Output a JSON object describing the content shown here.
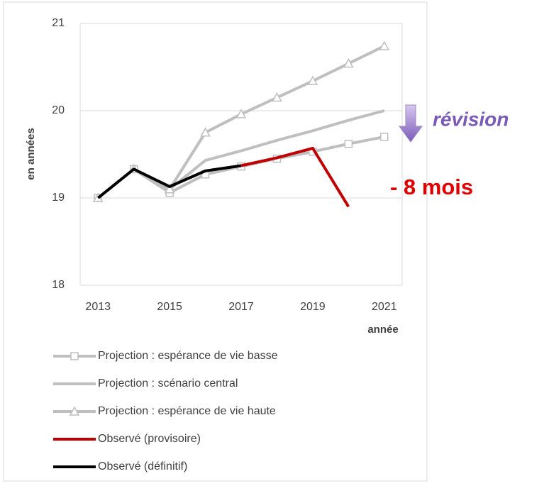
{
  "chart_data": {
    "type": "line",
    "y_label": "en années",
    "x_label": "année",
    "x": [
      2013,
      2014,
      2015,
      2016,
      2017,
      2018,
      2019,
      2020,
      2021
    ],
    "xlim": [
      2012.5,
      2021.5
    ],
    "xticks": [
      2013,
      2015,
      2017,
      2019,
      2021
    ],
    "ylim": [
      18,
      21
    ],
    "yticks": [
      18,
      19,
      20,
      21
    ],
    "grid": true,
    "series": [
      {
        "name": "Projection : espérance de vie basse",
        "color": "#bfbfbf",
        "marker": "square",
        "values": [
          19.0,
          19.33,
          19.06,
          19.27,
          19.36,
          19.45,
          19.53,
          19.62,
          19.7
        ]
      },
      {
        "name": "Projection : scénario central",
        "color": "#bfbfbf",
        "marker": "none",
        "values": [
          19.0,
          19.33,
          19.1,
          19.43,
          19.54,
          19.66,
          19.77,
          19.89,
          20.0
        ]
      },
      {
        "name": "Projection : espérance de vie haute",
        "color": "#bfbfbf",
        "marker": "triangle",
        "values": [
          19.0,
          19.33,
          19.1,
          19.75,
          19.96,
          20.15,
          20.34,
          20.54,
          20.74
        ]
      },
      {
        "name": "Observé (provisoire)",
        "color": "#c00000",
        "marker": "none",
        "values": [
          null,
          null,
          null,
          null,
          19.37,
          19.46,
          19.57,
          18.9,
          null
        ]
      },
      {
        "name": "Observé (définitif)",
        "color": "#000000",
        "marker": "none",
        "values": [
          19.0,
          19.33,
          19.13,
          19.31,
          19.37,
          null,
          null,
          null,
          null
        ]
      }
    ],
    "annotations": [
      "révision",
      "- 8 mois"
    ]
  }
}
